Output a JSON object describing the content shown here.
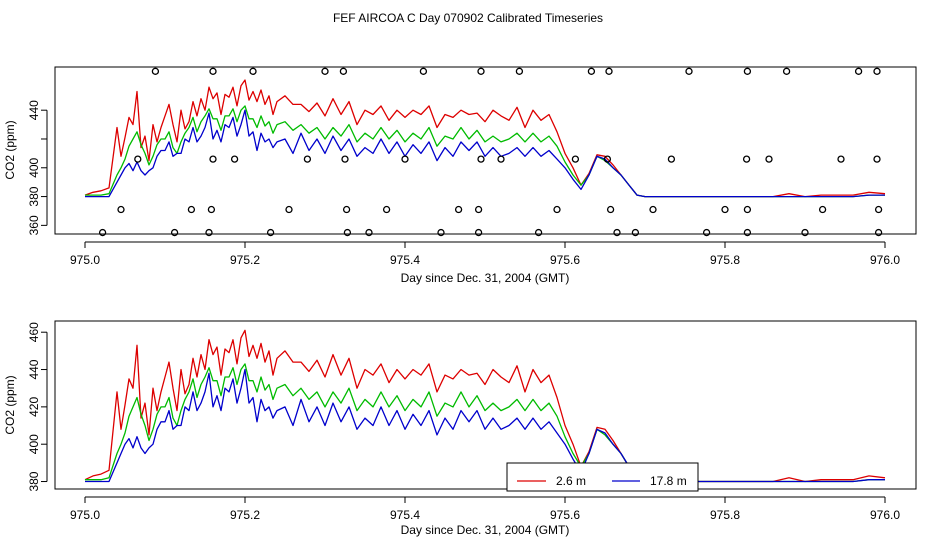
{
  "title": "FEF AIRCOA C  Day 070902  Calibrated Timeseries",
  "colors": {
    "red": "#dd0000",
    "green": "#00bb00",
    "blue": "#0000cc",
    "axis": "#000000"
  },
  "chart_data": [
    {
      "type": "line",
      "panel": "top",
      "xlabel": "Day since Dec. 31, 2004 (GMT)",
      "ylabel": "CO2 (ppm)",
      "xlim": [
        975.0,
        976.0
      ],
      "ylim": [
        354,
        470
      ],
      "x_ticks": [
        975.0,
        975.2,
        975.4,
        975.6,
        975.8,
        976.0
      ],
      "x_tick_labels": [
        "975.0",
        "975.2",
        "975.4",
        "975.6",
        "975.8",
        "976.0"
      ],
      "y_ticks": [
        360,
        380,
        400,
        420,
        440
      ],
      "y_tick_labels": [
        "360",
        "380",
        "400",
        "",
        "440"
      ],
      "series_keys": [
        "red",
        "green",
        "blue"
      ],
      "markers": {
        "symbol": "open-circle",
        "y_levels": [
          467,
          406,
          371,
          355
        ],
        "x": [
          [
            975.088,
            975.16,
            975.21,
            975.3,
            975.323,
            975.423,
            975.495,
            975.543,
            975.633,
            975.655,
            975.755,
            975.828,
            975.877,
            975.967,
            975.99
          ],
          [
            975.066,
            975.16,
            975.187,
            975.278,
            975.325,
            975.4,
            975.495,
            975.52,
            975.613,
            975.653,
            975.733,
            975.827,
            975.855,
            975.945,
            975.99
          ],
          [
            975.045,
            975.133,
            975.158,
            975.255,
            975.327,
            975.377,
            975.467,
            975.492,
            975.59,
            975.657,
            975.71,
            975.8,
            975.828,
            975.922,
            975.992
          ],
          [
            975.022,
            975.112,
            975.155,
            975.232,
            975.328,
            975.355,
            975.445,
            975.492,
            975.567,
            975.665,
            975.688,
            975.777,
            975.828,
            975.9,
            975.992
          ]
        ]
      }
    },
    {
      "type": "line",
      "panel": "bottom",
      "xlabel": "Day since Dec. 31, 2004 (GMT)",
      "ylabel": "CO2 (ppm)",
      "xlim": [
        975.0,
        976.0
      ],
      "ylim": [
        376,
        466
      ],
      "x_ticks": [
        975.0,
        975.2,
        975.4,
        975.6,
        975.8,
        976.0
      ],
      "x_tick_labels": [
        "975.0",
        "975.2",
        "975.4",
        "975.6",
        "975.8",
        "976.0"
      ],
      "y_ticks": [
        380,
        400,
        420,
        440,
        460
      ],
      "y_tick_labels": [
        "380",
        "400",
        "420",
        "440",
        "460"
      ],
      "series_keys": [
        "red",
        "green",
        "blue"
      ],
      "legend": {
        "placement": "bottom-center",
        "entries": [
          {
            "label": "2.6 m",
            "color_key": "red"
          },
          {
            "label": "17.8 m",
            "color_key": "blue"
          }
        ]
      }
    }
  ],
  "series_data": {
    "x": [
      975.0,
      975.01,
      975.02,
      975.03,
      975.04,
      975.045,
      975.05,
      975.055,
      975.06,
      975.065,
      975.07,
      975.075,
      975.08,
      975.085,
      975.09,
      975.095,
      975.1,
      975.105,
      975.11,
      975.115,
      975.12,
      975.125,
      975.13,
      975.135,
      975.14,
      975.145,
      975.15,
      975.155,
      975.16,
      975.165,
      975.17,
      975.175,
      975.18,
      975.185,
      975.19,
      975.195,
      975.2,
      975.205,
      975.21,
      975.215,
      975.22,
      975.225,
      975.23,
      975.235,
      975.24,
      975.25,
      975.26,
      975.27,
      975.28,
      975.29,
      975.3,
      975.31,
      975.32,
      975.33,
      975.34,
      975.35,
      975.36,
      975.37,
      975.38,
      975.39,
      975.4,
      975.41,
      975.42,
      975.43,
      975.44,
      975.45,
      975.46,
      975.47,
      975.48,
      975.49,
      975.5,
      975.51,
      975.52,
      975.53,
      975.54,
      975.55,
      975.56,
      975.57,
      975.58,
      975.59,
      975.6,
      975.61,
      975.62,
      975.63,
      975.64,
      975.65,
      975.66,
      975.67,
      975.68,
      975.69,
      975.7,
      975.71,
      975.72,
      975.75,
      975.8,
      975.82,
      975.84,
      975.86,
      975.88,
      975.9,
      975.92,
      975.94,
      975.96,
      975.98,
      976.0
    ],
    "red": [
      381,
      383,
      384,
      386,
      428,
      408,
      421,
      435,
      430,
      453,
      414,
      422,
      405,
      430,
      418,
      428,
      436,
      444,
      430,
      418,
      440,
      427,
      432,
      446,
      436,
      448,
      440,
      456,
      448,
      452,
      437,
      451,
      449,
      456,
      443,
      457,
      461,
      447,
      453,
      446,
      454,
      444,
      450,
      437,
      446,
      450,
      444,
      444,
      439,
      445,
      436,
      448,
      437,
      446,
      430,
      440,
      437,
      443,
      433,
      440,
      435,
      440,
      437,
      443,
      428,
      437,
      435,
      440,
      437,
      438,
      432,
      440,
      436,
      433,
      442,
      428,
      440,
      433,
      437,
      425,
      410,
      400,
      388,
      396,
      409,
      408,
      402,
      395,
      388,
      381,
      380,
      380,
      380,
      380,
      380,
      380,
      380,
      380,
      382,
      380,
      381,
      381,
      381,
      383,
      382
    ],
    "green": [
      381,
      381,
      381,
      382,
      395,
      400,
      406,
      415,
      420,
      425,
      416,
      410,
      402,
      408,
      416,
      420,
      420,
      425,
      414,
      410,
      418,
      424,
      428,
      435,
      425,
      432,
      436,
      441,
      434,
      434,
      426,
      436,
      436,
      441,
      432,
      440,
      443,
      434,
      434,
      428,
      436,
      429,
      432,
      424,
      430,
      432,
      426,
      430,
      424,
      428,
      420,
      428,
      422,
      430,
      418,
      424,
      420,
      428,
      420,
      426,
      418,
      424,
      420,
      428,
      415,
      422,
      420,
      428,
      420,
      426,
      418,
      422,
      418,
      420,
      424,
      418,
      424,
      418,
      422,
      415,
      404,
      395,
      388,
      395,
      408,
      405,
      400,
      395,
      388,
      381,
      380,
      380,
      380,
      380,
      380,
      380,
      380,
      380,
      380,
      380,
      380,
      380,
      380,
      381,
      381
    ],
    "blue": [
      380,
      380,
      380,
      380,
      390,
      395,
      400,
      403,
      398,
      404,
      398,
      395,
      398,
      400,
      408,
      412,
      412,
      418,
      408,
      410,
      410,
      420,
      418,
      428,
      418,
      422,
      428,
      438,
      420,
      426,
      418,
      430,
      428,
      435,
      422,
      430,
      440,
      422,
      425,
      412,
      424,
      418,
      420,
      414,
      418,
      420,
      410,
      424,
      412,
      420,
      410,
      422,
      412,
      420,
      408,
      414,
      410,
      420,
      410,
      418,
      408,
      416,
      410,
      418,
      405,
      414,
      408,
      418,
      412,
      418,
      408,
      414,
      408,
      410,
      414,
      408,
      414,
      408,
      412,
      406,
      400,
      392,
      385,
      395,
      408,
      406,
      400,
      395,
      388,
      381,
      380,
      380,
      380,
      380,
      380,
      380,
      380,
      380,
      380,
      380,
      380,
      380,
      380,
      381,
      381
    ]
  }
}
